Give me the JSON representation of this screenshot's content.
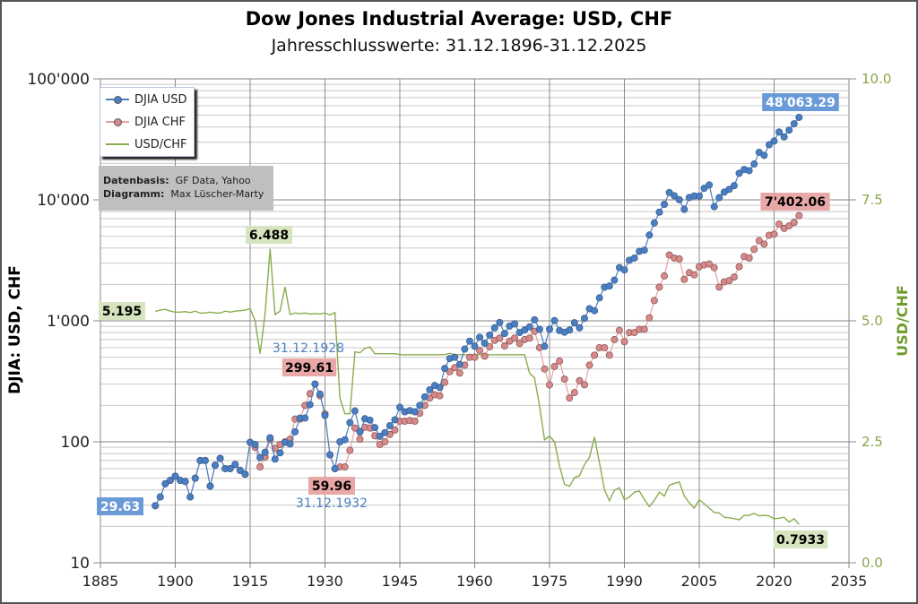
{
  "chart_data": {
    "type": "line",
    "title": "Dow Jones Industrial Average: USD, CHF",
    "subtitle": "Jahresschlusswerte: 31.12.1896-31.12.2025",
    "ylabel": "DJIA: USD, CHF",
    "ylabel_right": "USD/CHF",
    "xlabel": "",
    "xlim": [
      1885,
      2035
    ],
    "ylim": [
      10,
      100000
    ],
    "yscale": "log",
    "ylim_right": [
      0,
      10
    ],
    "x_ticks": [
      "1885",
      "1900",
      "1915",
      "1930",
      "1945",
      "1960",
      "1975",
      "1990",
      "2005",
      "2020",
      "2035"
    ],
    "y_ticks_left": [
      "10",
      "100",
      "1'000",
      "10'000",
      "100'000"
    ],
    "y_ticks_right": [
      "0.0",
      "2.5",
      "5.0",
      "7.5",
      "10.0"
    ],
    "grid": true,
    "legend_position": "top-left",
    "legend": [
      "DJIA USD",
      "DJIA CHF",
      "USD/CHF"
    ],
    "series_colors": {
      "usd": "#4a7fc4",
      "chf": "#e8a0a0",
      "chf_marker": "#d98989",
      "fx": "#8aac4e"
    },
    "years": [
      1896,
      1897,
      1898,
      1899,
      1900,
      1901,
      1902,
      1903,
      1904,
      1905,
      1906,
      1907,
      1908,
      1909,
      1910,
      1911,
      1912,
      1913,
      1914,
      1915,
      1916,
      1917,
      1918,
      1919,
      1920,
      1921,
      1922,
      1923,
      1924,
      1925,
      1926,
      1927,
      1928,
      1929,
      1930,
      1931,
      1932,
      1933,
      1934,
      1935,
      1936,
      1937,
      1938,
      1939,
      1940,
      1941,
      1942,
      1943,
      1944,
      1945,
      1946,
      1947,
      1948,
      1949,
      1950,
      1951,
      1952,
      1953,
      1954,
      1955,
      1956,
      1957,
      1958,
      1959,
      1960,
      1961,
      1962,
      1963,
      1964,
      1965,
      1966,
      1967,
      1968,
      1969,
      1970,
      1971,
      1972,
      1973,
      1974,
      1975,
      1976,
      1977,
      1978,
      1979,
      1980,
      1981,
      1982,
      1983,
      1984,
      1985,
      1986,
      1987,
      1988,
      1989,
      1990,
      1991,
      1992,
      1993,
      1994,
      1995,
      1996,
      1997,
      1998,
      1999,
      2000,
      2001,
      2002,
      2003,
      2004,
      2005,
      2006,
      2007,
      2008,
      2009,
      2010,
      2011,
      2012,
      2013,
      2014,
      2015,
      2016,
      2017,
      2018,
      2019,
      2020,
      2021,
      2022,
      2023,
      2024,
      2025
    ],
    "series": [
      {
        "name": "DJIA USD",
        "values": [
          29.63,
          35,
          45,
          48,
          52,
          48,
          47,
          35,
          50,
          70,
          70,
          43,
          64,
          73,
          60,
          60,
          65,
          58,
          54,
          99,
          95,
          74,
          82,
          108,
          72,
          81,
          99,
          96,
          121,
          157,
          157,
          203,
          300,
          248,
          165,
          78,
          60,
          100,
          104,
          144,
          180,
          121,
          155,
          151,
          131,
          111,
          119,
          136,
          152,
          193,
          177,
          181,
          177,
          200,
          235,
          269,
          292,
          281,
          404,
          488,
          500,
          436,
          584,
          679,
          616,
          731,
          652,
          763,
          874,
          969,
          786,
          905,
          944,
          800,
          839,
          891,
          1020,
          851,
          616,
          852,
          1005,
          831,
          805,
          839,
          964,
          875,
          1047,
          1259,
          1212,
          1547,
          1896,
          1939,
          2169,
          2753,
          2634,
          3169,
          3301,
          3754,
          3834,
          5117,
          6448,
          7908,
          9181,
          11497,
          10787,
          10022,
          8342,
          10454,
          10783,
          10718,
          12463,
          13265,
          8776,
          10428,
          11578,
          12218,
          13104,
          16577,
          17823,
          17425,
          19763,
          24719,
          23327,
          28538,
          30606,
          36338,
          33147,
          37690,
          42544,
          48063.29
        ]
      },
      {
        "name": "DJIA CHF",
        "values": [
          29.63,
          35,
          45,
          48,
          52,
          48,
          47,
          35,
          50,
          70,
          70,
          43,
          64,
          73,
          60,
          60,
          65,
          58,
          54,
          99,
          90,
          62,
          75,
          105,
          88,
          95,
          100,
          105,
          154,
          154,
          200,
          250,
          299.61,
          240,
          170,
          78,
          59.96,
          62,
          62,
          85,
          130,
          105,
          132,
          130,
          112,
          95,
          100,
          115,
          125,
          148,
          148,
          150,
          148,
          172,
          200,
          230,
          245,
          240,
          310,
          380,
          410,
          370,
          430,
          500,
          500,
          570,
          510,
          610,
          690,
          720,
          620,
          680,
          720,
          650,
          700,
          720,
          820,
          600,
          400,
          295,
          420,
          465,
          330,
          230,
          255,
          320,
          296,
          430,
          520,
          600,
          600,
          520,
          700,
          835,
          670,
          800,
          800,
          850,
          850,
          1060,
          1470,
          1900,
          2350,
          3500,
          3300,
          3250,
          2200,
          2500,
          2400,
          2800,
          2900,
          2950,
          2750,
          1900,
          2100,
          2150,
          2300,
          2800,
          3400,
          3300,
          3900,
          4600,
          4300,
          5100,
          5200,
          6300,
          5800,
          6100,
          6500,
          7402.06
        ]
      },
      {
        "name": "USD/CHF",
        "axis": "right",
        "values": [
          5.195,
          5.22,
          5.24,
          5.2,
          5.18,
          5.18,
          5.19,
          5.17,
          5.2,
          5.16,
          5.16,
          5.18,
          5.16,
          5.16,
          5.2,
          5.18,
          5.2,
          5.21,
          5.22,
          5.25,
          5.0,
          4.32,
          5.14,
          6.488,
          5.13,
          5.2,
          5.7,
          5.13,
          5.16,
          5.15,
          5.16,
          5.14,
          5.15,
          5.14,
          5.16,
          5.12,
          5.17,
          3.4,
          3.08,
          3.08,
          4.36,
          4.34,
          4.43,
          4.46,
          4.32,
          4.32,
          4.32,
          4.32,
          4.32,
          4.3,
          4.3,
          4.3,
          4.3,
          4.3,
          4.3,
          4.3,
          4.3,
          4.3,
          4.3,
          4.33,
          4.3,
          4.3,
          4.3,
          4.3,
          4.3,
          4.3,
          4.3,
          4.3,
          4.3,
          4.3,
          4.3,
          4.3,
          4.3,
          4.3,
          4.3,
          3.92,
          3.82,
          3.24,
          2.54,
          2.62,
          2.5,
          2.0,
          1.62,
          1.58,
          1.76,
          1.8,
          2.03,
          2.18,
          2.6,
          2.07,
          1.51,
          1.28,
          1.5,
          1.55,
          1.3,
          1.36,
          1.46,
          1.48,
          1.31,
          1.16,
          1.29,
          1.46,
          1.38,
          1.6,
          1.64,
          1.67,
          1.38,
          1.24,
          1.13,
          1.3,
          1.22,
          1.13,
          1.04,
          1.03,
          0.94,
          0.93,
          0.91,
          0.89,
          0.98,
          0.98,
          1.02,
          0.97,
          0.98,
          0.97,
          0.91,
          0.92,
          0.94,
          0.84,
          0.91,
          0.7933
        ]
      }
    ],
    "annotations": {
      "usd_start": "29.63",
      "usd_end": "48'063.29",
      "chf_peak": "299.61",
      "chf_peak_date": "31.12.1928",
      "chf_low": "59.96",
      "chf_low_date": "31.12.1932",
      "chf_end": "7'402.06",
      "fx_start": "5.195",
      "fx_peak": "6.488",
      "fx_end": "0.7933"
    },
    "source_box": {
      "data_label": "Datenbasis:",
      "data_value": "GF Data, Yahoo",
      "chart_label": "Diagramm:",
      "chart_value": "Max Lüscher-Marty"
    }
  }
}
